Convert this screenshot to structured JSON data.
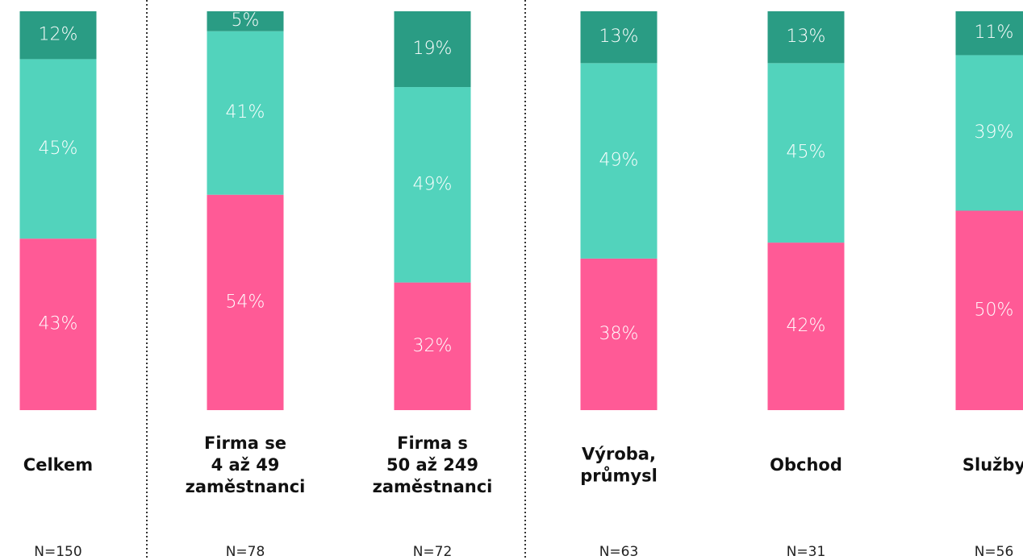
{
  "chart_data": {
    "type": "stacked_bar",
    "categories": [
      [
        "Celkem"
      ],
      [
        "Firma se",
        "4 až 49",
        "zaměstnanci"
      ],
      [
        "Firma s",
        "50 až 249",
        "zaměstnanci"
      ],
      [
        "Výroba,",
        "průmysl"
      ],
      [
        "Obchod"
      ],
      [
        "Služby"
      ]
    ],
    "n_labels": [
      "N=150",
      "N=78",
      "N=72",
      "N=63",
      "N=31",
      "N=56"
    ],
    "ylim": [
      0,
      100
    ],
    "series": [
      {
        "color": "#ff5a96",
        "values": [
          43,
          54,
          32,
          38,
          42,
          50
        ],
        "value_labels": [
          "43%",
          "54%",
          "32%",
          "38%",
          "42%",
          "50%"
        ]
      },
      {
        "color": "#52d3bc",
        "values": [
          45,
          41,
          49,
          49,
          45,
          39
        ],
        "value_labels": [
          "45%",
          "41%",
          "49%",
          "49%",
          "45%",
          "39%"
        ]
      },
      {
        "color": "#2a9c84",
        "values": [
          12,
          5,
          19,
          13,
          13,
          11
        ],
        "value_labels": [
          "12%",
          "5%",
          "19%",
          "13%",
          "13%",
          "11%"
        ]
      }
    ]
  }
}
